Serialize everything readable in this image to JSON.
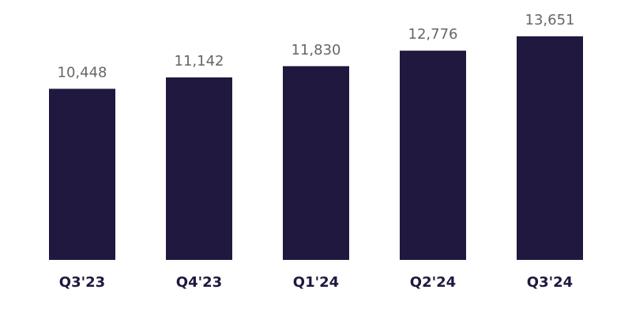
{
  "chart_data": {
    "type": "bar",
    "categories": [
      "Q3'23",
      "Q4'23",
      "Q1'24",
      "Q2'24",
      "Q3'24"
    ],
    "values": [
      10448,
      11142,
      11830,
      12776,
      13651
    ],
    "value_labels": [
      "10,448",
      "11,142",
      "11,830",
      "12,776",
      "13,651"
    ],
    "color": "#21183f"
  }
}
